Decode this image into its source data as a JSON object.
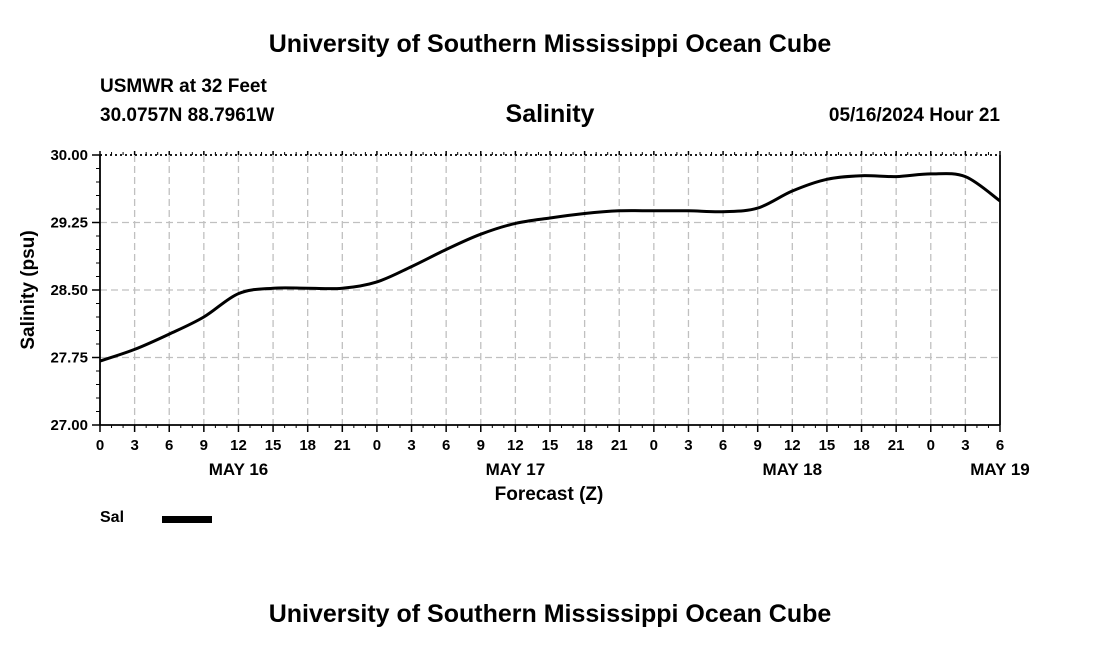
{
  "header": {
    "title": "University of Southern Mississippi Ocean Cube",
    "station": "USMWR at 32 Feet",
    "coordinates": "30.0757N  88.7961W",
    "chart_title": "Salinity",
    "datetime": "05/16/2024 Hour 21"
  },
  "footer": {
    "title": "University of Southern Mississippi Ocean Cube"
  },
  "legend": {
    "label": "Sal"
  },
  "colors": {
    "line": "#000000",
    "grid": "#c0c0c0",
    "background": "#ffffff"
  },
  "chart_data": {
    "type": "line",
    "title": "Salinity",
    "xlabel": "Forecast (Z)",
    "ylabel": "Salinity (psu)",
    "ylim": [
      27.0,
      30.0
    ],
    "yticks": [
      "27.00",
      "27.75",
      "28.50",
      "29.25",
      "30.00"
    ],
    "xlim_hours": [
      0,
      78
    ],
    "xtick_labels": [
      "0",
      "3",
      "6",
      "9",
      "12",
      "15",
      "18",
      "21",
      "0",
      "3",
      "6",
      "9",
      "12",
      "15",
      "18",
      "21",
      "0",
      "3",
      "6",
      "9",
      "12",
      "15",
      "18",
      "21",
      "0",
      "3",
      "6"
    ],
    "date_labels": [
      {
        "label": "MAY 16",
        "hour": 12
      },
      {
        "label": "MAY 17",
        "hour": 36
      },
      {
        "label": "MAY 18",
        "hour": 60
      },
      {
        "label": "MAY 19",
        "hour": 78
      }
    ],
    "series": [
      {
        "name": "Sal",
        "x_hours": [
          0,
          3,
          6,
          9,
          12,
          15,
          18,
          21,
          24,
          27,
          30,
          33,
          36,
          39,
          42,
          45,
          48,
          51,
          54,
          57,
          60,
          63,
          66,
          69,
          72,
          75,
          78
        ],
        "values": [
          27.71,
          27.84,
          28.01,
          28.2,
          28.46,
          28.52,
          28.52,
          28.52,
          28.59,
          28.76,
          28.95,
          29.12,
          29.24,
          29.3,
          29.35,
          29.38,
          29.38,
          29.38,
          29.37,
          29.41,
          29.6,
          29.73,
          29.77,
          29.76,
          29.79,
          29.76,
          29.49
        ]
      }
    ]
  }
}
